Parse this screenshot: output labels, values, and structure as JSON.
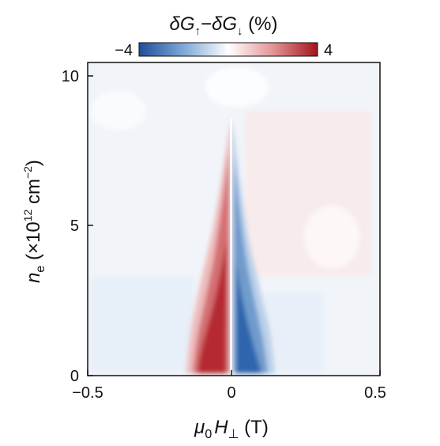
{
  "chart_data": {
    "type": "heatmap",
    "title": "",
    "colorbar": {
      "label_parts": {
        "delta1": "δ",
        "G1": "G",
        "arrow_up": "↑",
        "minus": "−",
        "delta2": "δ",
        "G2": "G",
        "arrow_down": "↓",
        "unit": " (%)"
      },
      "range": [
        -4,
        4
      ],
      "tick_labels": [
        "−4",
        "4"
      ],
      "colormap": {
        "low": "#1f4f9c",
        "mid": "#ffffff",
        "high": "#a3141c"
      }
    },
    "x_axis": {
      "label_parts": {
        "mu": "μ",
        "sub0": "0",
        "H": "H",
        "perp": "⊥",
        "unit": " (T)"
      },
      "range": [
        -0.5,
        0.5
      ],
      "ticks": [
        -0.5,
        0,
        0.5
      ],
      "tick_labels": [
        "−0.5",
        "0",
        "0.5"
      ]
    },
    "y_axis": {
      "label_parts": {
        "n": "n",
        "sub_e": "e",
        "prefix": " (×10",
        "exp": "12",
        "mid": " cm",
        "exp2": "−2",
        "suffix": ")"
      },
      "range": [
        0,
        10.5
      ],
      "ticks": [
        0,
        5,
        10
      ],
      "tick_labels": [
        "0",
        "5",
        "10"
      ]
    },
    "features": [
      {
        "name": "red lobe",
        "sign": "positive",
        "peak_value": 4,
        "x_range": [
          -0.16,
          0
        ],
        "y_range": [
          0,
          8.7
        ]
      },
      {
        "name": "blue lobe",
        "sign": "negative",
        "peak_value": -4,
        "x_range": [
          0,
          0.15
        ],
        "y_range": [
          0,
          8.7
        ]
      }
    ]
  }
}
